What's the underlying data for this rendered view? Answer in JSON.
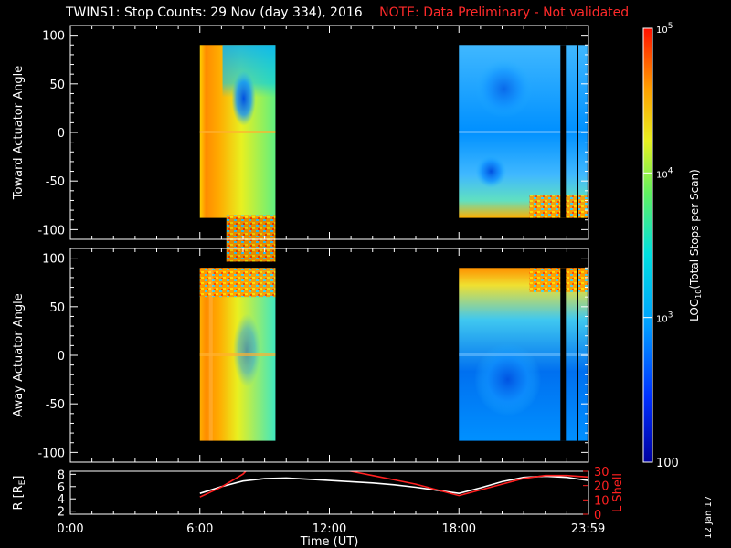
{
  "header": {
    "title": "TWINS1: Stop Counts: 29 Nov (day 334), 2016",
    "note": "NOTE: Data Preliminary - Not validated"
  },
  "footer": {
    "date_stamp": "12 Jan 17"
  },
  "colors": {
    "background": "#000000",
    "axes": "#ffffff",
    "note": "#ff2a2a",
    "lshell": "#ff2020",
    "radius": "#ffffff"
  },
  "chart_data": [
    {
      "type": "heatmap",
      "name": "toward",
      "ylabel": "Toward Actuator Angle",
      "ylim": [
        -110,
        110
      ],
      "yticks": [
        100,
        50,
        0,
        -50,
        -100
      ],
      "xlim": [
        0,
        24
      ],
      "angle_range": [
        -88,
        90
      ],
      "segments": [
        {
          "start_hr": 6.0,
          "end_hr": 9.5,
          "pattern": "pass1-toward"
        },
        {
          "start_hr": 18.0,
          "end_hr": 23.95,
          "pattern": "pass2-toward"
        }
      ]
    },
    {
      "type": "heatmap",
      "name": "away",
      "ylabel": "Away Actuator Angle",
      "ylim": [
        -110,
        110
      ],
      "yticks": [
        100,
        50,
        0,
        -50,
        -100
      ],
      "xlim": [
        0,
        24
      ],
      "angle_range": [
        -88,
        90
      ],
      "segments": [
        {
          "start_hr": 6.0,
          "end_hr": 9.5,
          "pattern": "pass1-away"
        },
        {
          "start_hr": 18.0,
          "end_hr": 23.95,
          "pattern": "pass2-away"
        }
      ]
    },
    {
      "type": "line",
      "name": "orbit",
      "ylabel": "R [R",
      "ylabel_sub": "E",
      "ylabel_close": "]",
      "ylim": [
        1.5,
        8.5
      ],
      "yticks": [
        2,
        4,
        6,
        8
      ],
      "y2label": "L Shell",
      "y2lim": [
        0,
        30
      ],
      "y2ticks": [
        0,
        10,
        20,
        30
      ],
      "xlim": [
        0,
        24
      ],
      "xticks": [
        "0:00",
        "6:00",
        "12:00",
        "18:00",
        "23:59"
      ],
      "xtick_hours": [
        0,
        6,
        12,
        18,
        23.983
      ],
      "xlabel": "Time (UT)",
      "series": [
        {
          "name": "R",
          "axis": "left",
          "color": "#ffffff",
          "x": [
            6.0,
            7.0,
            8.0,
            9.0,
            10.0,
            11.0,
            12.0,
            13.0,
            14.0,
            15.0,
            16.0,
            17.0,
            18.0,
            19.0,
            20.0,
            21.0,
            22.0,
            23.0,
            23.98
          ],
          "y": [
            4.9,
            6.0,
            6.9,
            7.3,
            7.4,
            7.2,
            7.0,
            6.8,
            6.6,
            6.3,
            5.9,
            5.4,
            4.9,
            5.8,
            6.8,
            7.5,
            7.7,
            7.5,
            7.0
          ]
        },
        {
          "name": "L Shell",
          "axis": "right",
          "color": "#ff2020",
          "x": [
            6.0,
            7.0,
            8.0,
            8.25,
            12.0,
            13.0,
            14.0,
            15.0,
            16.0,
            17.0,
            18.0,
            19.0,
            20.0,
            21.0,
            22.0,
            23.0,
            23.98
          ],
          "y": [
            12,
            19,
            28,
            32,
            32,
            30,
            27,
            24,
            21,
            17,
            13,
            17,
            21,
            25,
            27,
            27,
            26
          ]
        }
      ]
    }
  ],
  "colorbar": {
    "label": "LOG",
    "label_sub": "10",
    "label_rest": "(Total Stops per Scan)",
    "min": 100,
    "max": 100000,
    "ticks": [
      {
        "value": 100000,
        "text": "10",
        "sup": "5"
      },
      {
        "value": 10000,
        "text": "10",
        "sup": "4"
      },
      {
        "value": 1000,
        "text": "10",
        "sup": "3"
      },
      {
        "value": 100,
        "text": "100",
        "sup": ""
      }
    ]
  }
}
